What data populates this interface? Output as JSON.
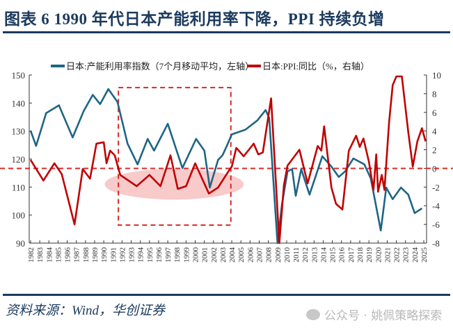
{
  "title": "图表 6   1990 年代日本产能利用率下降，PPI 持续负增",
  "source": "资料来源：Wind，华创证券",
  "watermark": "公众号 · 姚佩策略探索",
  "chart_data": {
    "type": "line",
    "legend_position": "top",
    "grid": false,
    "colors": {
      "capacity": "#1e6585",
      "ppi": "#c00000",
      "annotation": "#d62728",
      "ellipse": "#f4a6a6"
    },
    "x_ticks": [
      "1982",
      "1983",
      "1984",
      "1985",
      "1986",
      "1987",
      "1988",
      "1989",
      "1990",
      "1991",
      "1992",
      "1993",
      "1994",
      "1995",
      "1996",
      "1997",
      "1998",
      "1999",
      "2000",
      "2001",
      "2002",
      "2003",
      "2004",
      "2005",
      "2006",
      "2007",
      "2008",
      "2009",
      "2010",
      "2011",
      "2012",
      "2013",
      "2014",
      "2015",
      "2016",
      "2017",
      "2018",
      "2019",
      "2020",
      "2021",
      "2022",
      "2023",
      "2024",
      "2025"
    ],
    "xlim": [
      1982,
      2025.3
    ],
    "y_left": {
      "ylim": [
        90,
        150
      ],
      "ticks": [
        "90",
        "100",
        "110",
        "120",
        "130",
        "140",
        "150"
      ]
    },
    "y_right": {
      "ylim": [
        -8,
        10
      ],
      "ticks": [
        "-8",
        "-6",
        "-4",
        "-2",
        "0",
        "2",
        "4",
        "6",
        "8",
        "10"
      ]
    },
    "series": [
      {
        "name": "日本:产能利用率指数（7个月移动平均，左轴）",
        "axis": "left",
        "key": "capacity",
        "points": [
          [
            1982.0,
            130.1
          ],
          [
            1982.6,
            124.7
          ],
          [
            1983.7,
            136.4
          ],
          [
            1985.1,
            139.2
          ],
          [
            1986.6,
            127.7
          ],
          [
            1987.8,
            137.1
          ],
          [
            1988.8,
            142.9
          ],
          [
            1989.6,
            139.6
          ],
          [
            1990.5,
            145.0
          ],
          [
            1991.5,
            140.4
          ],
          [
            1992.6,
            125.5
          ],
          [
            1993.7,
            118.1
          ],
          [
            1994.8,
            127.2
          ],
          [
            1995.5,
            123.0
          ],
          [
            1997.0,
            132.6
          ],
          [
            1998.6,
            116.8
          ],
          [
            2000.1,
            127.2
          ],
          [
            2001.0,
            123.0
          ],
          [
            2001.6,
            109.8
          ],
          [
            2002.5,
            119.7
          ],
          [
            2003.0,
            121.4
          ],
          [
            2003.5,
            125.0
          ],
          [
            2004.0,
            128.8
          ],
          [
            2005.5,
            130.5
          ],
          [
            2006.8,
            133.8
          ],
          [
            2007.7,
            137.5
          ],
          [
            2008.1,
            134.6
          ],
          [
            2009.0,
            90.0
          ],
          [
            2009.5,
            104.0
          ],
          [
            2010.1,
            115.6
          ],
          [
            2010.6,
            116.4
          ],
          [
            2011.0,
            106.9
          ],
          [
            2011.6,
            116.4
          ],
          [
            2012.5,
            107.3
          ],
          [
            2013.9,
            121.0
          ],
          [
            2014.9,
            117.3
          ],
          [
            2015.7,
            113.6
          ],
          [
            2016.4,
            115.6
          ],
          [
            2017.3,
            120.2
          ],
          [
            2018.5,
            118.1
          ],
          [
            2019.2,
            113.1
          ],
          [
            2020.3,
            94.5
          ],
          [
            2020.9,
            109.8
          ],
          [
            2021.6,
            105.7
          ],
          [
            2022.5,
            109.8
          ],
          [
            2023.3,
            107.3
          ],
          [
            2024.0,
            100.7
          ],
          [
            2024.8,
            102.4
          ]
        ]
      },
      {
        "name": "日本:PPI:同比（%，右轴）",
        "axis": "right",
        "key": "ppi",
        "points": [
          [
            1982.0,
            0.9
          ],
          [
            1983.4,
            -1.3
          ],
          [
            1984.6,
            0.55
          ],
          [
            1985.4,
            -0.6
          ],
          [
            1986.8,
            -6.0
          ],
          [
            1987.7,
            -0.07
          ],
          [
            1988.5,
            -1.1
          ],
          [
            1989.2,
            2.65
          ],
          [
            1990.0,
            2.8
          ],
          [
            1990.3,
            0.55
          ],
          [
            1990.7,
            1.9
          ],
          [
            1991.2,
            1.4
          ],
          [
            1991.8,
            -0.7
          ],
          [
            1993.6,
            -1.9
          ],
          [
            1995.0,
            -0.7
          ],
          [
            1996.2,
            -1.9
          ],
          [
            1997.3,
            1.4
          ],
          [
            1998.1,
            -2.2
          ],
          [
            1999.0,
            -1.9
          ],
          [
            2000.0,
            0.55
          ],
          [
            2001.5,
            -2.7
          ],
          [
            2002.5,
            -2.05
          ],
          [
            2003.8,
            -0.07
          ],
          [
            2004.0,
            0.18
          ],
          [
            2004.5,
            2.2
          ],
          [
            2005.3,
            1.3
          ],
          [
            2006.4,
            2.65
          ],
          [
            2006.9,
            1.5
          ],
          [
            2007.4,
            1.7
          ],
          [
            2008.3,
            7.5
          ],
          [
            2008.7,
            0.7
          ],
          [
            2009.2,
            -8.0
          ],
          [
            2009.7,
            -1.8
          ],
          [
            2010.1,
            0.3
          ],
          [
            2011.4,
            2.0
          ],
          [
            2012.3,
            -1.6
          ],
          [
            2013.4,
            2.4
          ],
          [
            2013.8,
            1.9
          ],
          [
            2014.1,
            4.5
          ],
          [
            2014.9,
            -2.05
          ],
          [
            2015.4,
            -3.8
          ],
          [
            2016.1,
            -4.4
          ],
          [
            2016.8,
            1.9
          ],
          [
            2017.6,
            3.5
          ],
          [
            2018.0,
            2.3
          ],
          [
            2018.4,
            3.2
          ],
          [
            2019.0,
            0.7
          ],
          [
            2019.5,
            -2.3
          ],
          [
            2019.8,
            1.5
          ],
          [
            2020.0,
            -2.5
          ],
          [
            2020.4,
            -0.7
          ],
          [
            2020.7,
            -2.3
          ],
          [
            2021.2,
            4.9
          ],
          [
            2021.6,
            8.9
          ],
          [
            2022.0,
            9.85
          ],
          [
            2022.6,
            9.85
          ],
          [
            2023.3,
            3.9
          ],
          [
            2023.8,
            0.2
          ],
          [
            2024.3,
            2.9
          ],
          [
            2024.8,
            4.3
          ],
          [
            2025.2,
            2.9
          ]
        ]
      }
    ],
    "annotations": {
      "zero_line_right_axis": 0,
      "box": {
        "x": [
          1991.6,
          2003.9
        ],
        "y_left": [
          96.4,
          145.5
        ]
      },
      "ellipse": {
        "center_year": 1997.7,
        "center_right": -1.7,
        "half_width_years": 7.6,
        "half_height_right": 1.64
      }
    }
  }
}
